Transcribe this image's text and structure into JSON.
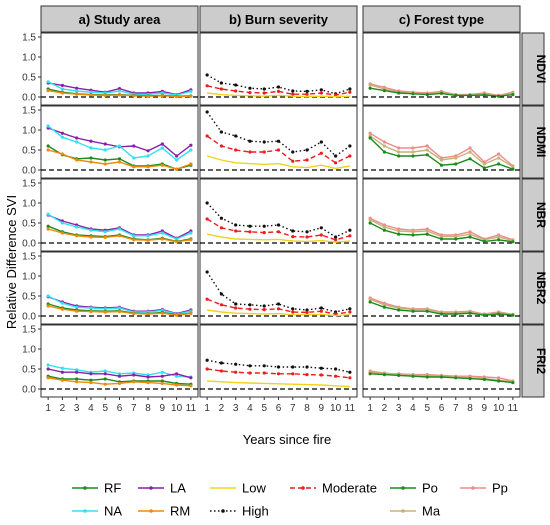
{
  "figure": {
    "ylabel": "Relative Difference SVI",
    "xlabel": "Years since fire"
  },
  "chart_data": {
    "type": "line",
    "x": [
      1,
      2,
      3,
      4,
      5,
      6,
      7,
      8,
      9,
      10,
      11
    ],
    "x_ticks": [
      "1",
      "2",
      "3",
      "4",
      "5",
      "6",
      "7",
      "8",
      "9",
      "10",
      "11"
    ],
    "xlim": [
      0.5,
      11.5
    ],
    "columns": [
      "a) Study area",
      "b) Burn severity",
      "c) Forest type"
    ],
    "rows": [
      {
        "label": "NDVI",
        "ylim": [
          -0.2,
          1.6
        ],
        "yticks": [
          "0.0",
          "0.5",
          "1.0",
          "1.5"
        ],
        "ytick_values": [
          0,
          0.5,
          1.0,
          1.5
        ]
      },
      {
        "label": "NDMI",
        "ylim": [
          -0.2,
          1.6
        ],
        "yticks": [
          "0.0",
          "0.5",
          "1.0",
          "1.5"
        ],
        "ytick_values": [
          0,
          0.5,
          1.0,
          1.5
        ]
      },
      {
        "label": "NBR",
        "ylim": [
          -0.2,
          1.6
        ],
        "yticks": [
          "0.0",
          "0.5",
          "1.0",
          "1.5"
        ],
        "ytick_values": [
          0,
          0.5,
          1.0,
          1.5
        ]
      },
      {
        "label": "NBR2",
        "ylim": [
          -0.2,
          1.6
        ],
        "yticks": [
          "0.0",
          "0.5",
          "1.0",
          "1.5"
        ],
        "ytick_values": [
          0,
          0.5,
          1.0,
          1.5
        ]
      },
      {
        "label": "FRI2",
        "ylim": [
          -0.2,
          1.6
        ],
        "yticks": [
          "0.0",
          "0.5",
          "1.0",
          "1.5"
        ],
        "ytick_values": [
          0,
          0.5,
          1.0,
          1.5
        ]
      }
    ],
    "baseline": 0,
    "styles": {
      "RF": {
        "color": "#1e8a1e",
        "dash": "solid",
        "marker": true
      },
      "LA": {
        "color": "#8b1fa8",
        "dash": "solid",
        "marker": true
      },
      "NA": {
        "color": "#33e0f2",
        "dash": "solid",
        "marker": true
      },
      "RM": {
        "color": "#f08a0a",
        "dash": "solid",
        "marker": true
      },
      "Low": {
        "color": "#f2d21c",
        "dash": "solid",
        "marker": false
      },
      "Moderate": {
        "color": "#ee1c1c",
        "dash": "dashed",
        "marker": true
      },
      "High": {
        "color": "#111111",
        "dash": "dotted",
        "marker": true
      },
      "Po": {
        "color": "#1e8a1e",
        "dash": "solid",
        "marker": true
      },
      "Pp": {
        "color": "#f08a8a",
        "dash": "solid",
        "marker": true
      },
      "Ma": {
        "color": "#c8b07a",
        "dash": "solid",
        "marker": true
      }
    },
    "panels": [
      {
        "row": 0,
        "col": 0,
        "series": [
          {
            "name": "LA",
            "values": [
              0.35,
              0.29,
              0.22,
              0.17,
              0.12,
              0.21,
              0.1,
              0.1,
              0.14,
              0.06,
              0.18
            ]
          },
          {
            "name": "NA",
            "values": [
              0.38,
              0.2,
              0.15,
              0.12,
              0.1,
              0.15,
              0.07,
              0.06,
              0.1,
              0.05,
              0.14
            ]
          },
          {
            "name": "RF",
            "values": [
              0.2,
              0.12,
              0.08,
              0.06,
              0.05,
              0.06,
              0.04,
              0.03,
              0.04,
              0.02,
              0.03
            ]
          },
          {
            "name": "RM",
            "values": [
              0.16,
              0.1,
              0.07,
              0.05,
              0.04,
              0.05,
              0.03,
              0.02,
              0.03,
              0.01,
              0.02
            ]
          }
        ]
      },
      {
        "row": 0,
        "col": 1,
        "series": [
          {
            "name": "High",
            "values": [
              0.55,
              0.35,
              0.3,
              0.22,
              0.2,
              0.25,
              0.15,
              0.14,
              0.18,
              0.08,
              0.2
            ]
          },
          {
            "name": "Moderate",
            "values": [
              0.28,
              0.2,
              0.15,
              0.11,
              0.1,
              0.14,
              0.07,
              0.07,
              0.1,
              0.05,
              0.12
            ]
          },
          {
            "name": "Low",
            "values": [
              0.1,
              0.06,
              0.04,
              0.03,
              0.02,
              0.04,
              0.02,
              0.01,
              0.02,
              0.01,
              0.02
            ]
          }
        ]
      },
      {
        "row": 0,
        "col": 2,
        "series": [
          {
            "name": "Pp",
            "values": [
              0.33,
              0.24,
              0.15,
              0.12,
              0.1,
              0.14,
              0.06,
              0.06,
              0.1,
              0.04,
              0.12
            ]
          },
          {
            "name": "Ma",
            "values": [
              0.3,
              0.2,
              0.12,
              0.1,
              0.08,
              0.12,
              0.05,
              0.05,
              0.08,
              0.03,
              0.1
            ]
          },
          {
            "name": "Po",
            "values": [
              0.22,
              0.16,
              0.1,
              0.08,
              0.06,
              0.09,
              0.04,
              0.04,
              0.05,
              0.02,
              0.06
            ]
          }
        ]
      },
      {
        "row": 1,
        "col": 0,
        "series": [
          {
            "name": "LA",
            "values": [
              1.05,
              0.92,
              0.8,
              0.72,
              0.65,
              0.58,
              0.6,
              0.48,
              0.65,
              0.35,
              0.62
            ]
          },
          {
            "name": "NA",
            "values": [
              1.1,
              0.82,
              0.7,
              0.55,
              0.5,
              0.6,
              0.3,
              0.35,
              0.55,
              0.25,
              0.5
            ]
          },
          {
            "name": "RF",
            "values": [
              0.6,
              0.38,
              0.28,
              0.3,
              0.25,
              0.28,
              0.1,
              0.1,
              0.15,
              0.02,
              0.12
            ]
          },
          {
            "name": "RM",
            "values": [
              0.5,
              0.4,
              0.25,
              0.2,
              0.15,
              0.2,
              0.08,
              0.08,
              0.12,
              0.02,
              0.15
            ]
          }
        ]
      },
      {
        "row": 1,
        "col": 1,
        "series": [
          {
            "name": "High",
            "values": [
              1.45,
              0.95,
              0.85,
              0.72,
              0.7,
              0.72,
              0.45,
              0.5,
              0.7,
              0.35,
              0.6
            ]
          },
          {
            "name": "Moderate",
            "values": [
              0.85,
              0.6,
              0.5,
              0.45,
              0.45,
              0.5,
              0.22,
              0.25,
              0.42,
              0.18,
              0.35
            ]
          },
          {
            "name": "Low",
            "values": [
              0.35,
              0.25,
              0.18,
              0.16,
              0.14,
              0.16,
              0.08,
              0.06,
              0.12,
              0.04,
              0.1
            ]
          }
        ]
      },
      {
        "row": 1,
        "col": 2,
        "series": [
          {
            "name": "Pp",
            "values": [
              0.92,
              0.7,
              0.55,
              0.55,
              0.6,
              0.3,
              0.35,
              0.55,
              0.2,
              0.4,
              0.1
            ]
          },
          {
            "name": "Ma",
            "values": [
              0.85,
              0.6,
              0.45,
              0.45,
              0.5,
              0.25,
              0.3,
              0.45,
              0.15,
              0.3,
              0.08
            ]
          },
          {
            "name": "Po",
            "values": [
              0.8,
              0.45,
              0.35,
              0.35,
              0.38,
              0.12,
              0.15,
              0.28,
              0.05,
              0.15,
              0.02
            ]
          }
        ]
      },
      {
        "row": 2,
        "col": 0,
        "series": [
          {
            "name": "LA",
            "values": [
              0.7,
              0.55,
              0.45,
              0.35,
              0.32,
              0.38,
              0.2,
              0.2,
              0.3,
              0.12,
              0.3
            ]
          },
          {
            "name": "NA",
            "values": [
              0.72,
              0.5,
              0.4,
              0.32,
              0.28,
              0.35,
              0.18,
              0.18,
              0.25,
              0.1,
              0.25
            ]
          },
          {
            "name": "RF",
            "values": [
              0.42,
              0.28,
              0.2,
              0.18,
              0.16,
              0.2,
              0.1,
              0.08,
              0.12,
              0.04,
              0.1
            ]
          },
          {
            "name": "RM",
            "values": [
              0.35,
              0.25,
              0.18,
              0.15,
              0.14,
              0.18,
              0.08,
              0.07,
              0.1,
              0.03,
              0.08
            ]
          }
        ]
      },
      {
        "row": 2,
        "col": 1,
        "series": [
          {
            "name": "High",
            "values": [
              1.0,
              0.62,
              0.45,
              0.42,
              0.42,
              0.45,
              0.3,
              0.28,
              0.38,
              0.15,
              0.32
            ]
          },
          {
            "name": "Moderate",
            "values": [
              0.6,
              0.38,
              0.3,
              0.28,
              0.26,
              0.28,
              0.16,
              0.15,
              0.2,
              0.08,
              0.18
            ]
          },
          {
            "name": "Low",
            "values": [
              0.22,
              0.15,
              0.1,
              0.09,
              0.08,
              0.09,
              0.05,
              0.04,
              0.06,
              0.02,
              0.05
            ]
          }
        ]
      },
      {
        "row": 2,
        "col": 2,
        "series": [
          {
            "name": "Pp",
            "values": [
              0.62,
              0.45,
              0.35,
              0.32,
              0.35,
              0.2,
              0.2,
              0.28,
              0.1,
              0.2,
              0.08
            ]
          },
          {
            "name": "Ma",
            "values": [
              0.58,
              0.4,
              0.3,
              0.28,
              0.3,
              0.16,
              0.16,
              0.22,
              0.08,
              0.15,
              0.06
            ]
          },
          {
            "name": "Po",
            "values": [
              0.5,
              0.32,
              0.22,
              0.2,
              0.22,
              0.1,
              0.1,
              0.15,
              0.04,
              0.08,
              0.03
            ]
          }
        ]
      },
      {
        "row": 3,
        "col": 0,
        "series": [
          {
            "name": "LA",
            "values": [
              0.48,
              0.35,
              0.25,
              0.22,
              0.2,
              0.22,
              0.12,
              0.12,
              0.16,
              0.06,
              0.15
            ]
          },
          {
            "name": "NA",
            "values": [
              0.5,
              0.32,
              0.22,
              0.2,
              0.18,
              0.2,
              0.1,
              0.1,
              0.14,
              0.05,
              0.12
            ]
          },
          {
            "name": "RF",
            "values": [
              0.3,
              0.2,
              0.15,
              0.13,
              0.12,
              0.13,
              0.07,
              0.06,
              0.09,
              0.03,
              0.07
            ]
          },
          {
            "name": "RM",
            "values": [
              0.25,
              0.17,
              0.12,
              0.11,
              0.1,
              0.11,
              0.06,
              0.05,
              0.07,
              0.02,
              0.06
            ]
          }
        ]
      },
      {
        "row": 3,
        "col": 1,
        "series": [
          {
            "name": "High",
            "values": [
              1.1,
              0.55,
              0.3,
              0.28,
              0.25,
              0.3,
              0.18,
              0.15,
              0.2,
              0.1,
              0.18
            ]
          },
          {
            "name": "Moderate",
            "values": [
              0.42,
              0.28,
              0.2,
              0.17,
              0.16,
              0.18,
              0.1,
              0.09,
              0.12,
              0.05,
              0.1
            ]
          },
          {
            "name": "Low",
            "values": [
              0.15,
              0.1,
              0.07,
              0.06,
              0.05,
              0.06,
              0.03,
              0.03,
              0.04,
              0.01,
              0.03
            ]
          }
        ]
      },
      {
        "row": 3,
        "col": 2,
        "series": [
          {
            "name": "Pp",
            "values": [
              0.45,
              0.32,
              0.22,
              0.18,
              0.18,
              0.1,
              0.1,
              0.12,
              0.05,
              0.1,
              0.04
            ]
          },
          {
            "name": "Ma",
            "values": [
              0.42,
              0.28,
              0.2,
              0.16,
              0.16,
              0.08,
              0.08,
              0.1,
              0.04,
              0.08,
              0.03
            ]
          },
          {
            "name": "Po",
            "values": [
              0.35,
              0.22,
              0.15,
              0.12,
              0.12,
              0.05,
              0.05,
              0.07,
              0.02,
              0.05,
              0.02
            ]
          }
        ]
      },
      {
        "row": 4,
        "col": 0,
        "series": [
          {
            "name": "NA",
            "values": [
              0.6,
              0.52,
              0.48,
              0.42,
              0.45,
              0.38,
              0.4,
              0.35,
              0.42,
              0.32,
              0.3
            ]
          },
          {
            "name": "LA",
            "values": [
              0.5,
              0.42,
              0.42,
              0.38,
              0.38,
              0.32,
              0.35,
              0.3,
              0.32,
              0.38,
              0.28
            ]
          },
          {
            "name": "RF",
            "values": [
              0.32,
              0.25,
              0.25,
              0.22,
              0.25,
              0.18,
              0.2,
              0.2,
              0.2,
              0.14,
              0.12
            ]
          },
          {
            "name": "RM",
            "values": [
              0.28,
              0.22,
              0.18,
              0.16,
              0.12,
              0.14,
              0.18,
              0.16,
              0.14,
              0.1,
              0.08
            ]
          }
        ]
      },
      {
        "row": 4,
        "col": 1,
        "series": [
          {
            "name": "High",
            "values": [
              0.72,
              0.65,
              0.62,
              0.58,
              0.58,
              0.55,
              0.55,
              0.55,
              0.52,
              0.5,
              0.42
            ]
          },
          {
            "name": "Moderate",
            "values": [
              0.5,
              0.45,
              0.42,
              0.4,
              0.4,
              0.38,
              0.38,
              0.36,
              0.35,
              0.32,
              0.28
            ]
          },
          {
            "name": "Low",
            "values": [
              0.2,
              0.18,
              0.16,
              0.15,
              0.14,
              0.13,
              0.12,
              0.11,
              0.1,
              0.08,
              0.06
            ]
          }
        ]
      },
      {
        "row": 4,
        "col": 2,
        "series": [
          {
            "name": "Pp",
            "values": [
              0.42,
              0.38,
              0.38,
              0.36,
              0.36,
              0.34,
              0.32,
              0.32,
              0.3,
              0.28,
              0.2
            ]
          },
          {
            "name": "Ma",
            "values": [
              0.45,
              0.4,
              0.36,
              0.35,
              0.33,
              0.32,
              0.3,
              0.28,
              0.26,
              0.22,
              0.18
            ]
          },
          {
            "name": "Po",
            "values": [
              0.38,
              0.36,
              0.34,
              0.32,
              0.3,
              0.3,
              0.28,
              0.26,
              0.24,
              0.2,
              0.16
            ]
          }
        ]
      }
    ],
    "legend": [
      [
        "RF",
        "LA",
        "NA",
        "RM"
      ],
      [
        "Low",
        "Moderate",
        "High"
      ],
      [
        "Po",
        "Pp",
        "Ma"
      ]
    ]
  }
}
